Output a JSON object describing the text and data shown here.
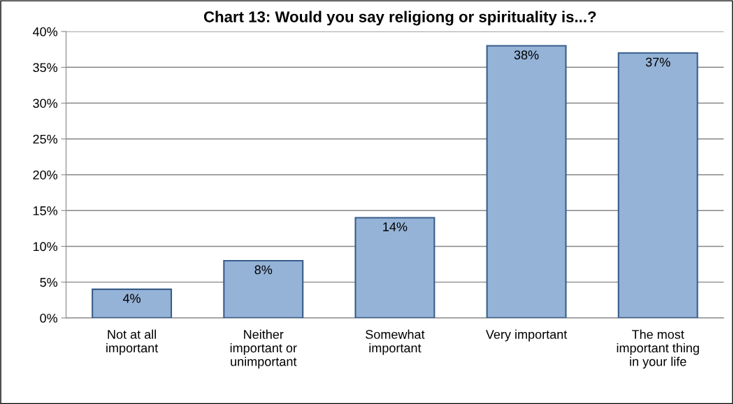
{
  "chart_data": {
    "type": "bar",
    "title": "Chart 13: Would you say religiong or spirituality is...?",
    "categories": [
      "Not at all\nimportant",
      "Neither\nimportant or\nunimportant",
      "Somewhat\nimportant",
      "Very important",
      "The most\nimportant thing\nin your life"
    ],
    "values": [
      4,
      8,
      14,
      38,
      37
    ],
    "value_labels": [
      "4%",
      "8%",
      "14%",
      "38%",
      "37%"
    ],
    "color": "#95b3d7",
    "ylim": [
      0,
      40
    ],
    "yticks": [
      {
        "value": 0,
        "label": "0%"
      },
      {
        "value": 5,
        "label": "5%"
      },
      {
        "value": 10,
        "label": "10%"
      },
      {
        "value": 15,
        "label": "15%"
      },
      {
        "value": 20,
        "label": "20%"
      },
      {
        "value": 25,
        "label": "25%"
      },
      {
        "value": 30,
        "label": "30%"
      },
      {
        "value": 35,
        "label": "35%"
      },
      {
        "value": 40,
        "label": "40%"
      }
    ],
    "grid": "y",
    "legend": false
  }
}
